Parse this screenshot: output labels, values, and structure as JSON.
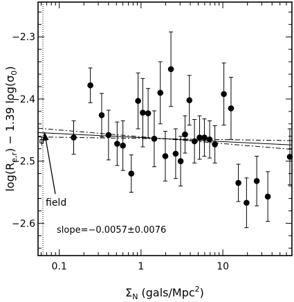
{
  "chart_data": {
    "type": "scatter",
    "xscale": "log",
    "xlim": [
      0.055,
      70
    ],
    "ylim": [
      -2.652,
      -2.244
    ],
    "xticks": [
      {
        "value": 0.1,
        "label": "0.1"
      },
      {
        "value": 1,
        "label": "1"
      },
      {
        "value": 10,
        "label": "10"
      }
    ],
    "yticks": [
      {
        "value": -2.3,
        "label": "−2.3"
      },
      {
        "value": -2.4,
        "label": "−2.4"
      },
      {
        "value": -2.5,
        "label": "−2.5"
      },
      {
        "value": -2.6,
        "label": "−2.6"
      }
    ],
    "xlabel": {
      "prefix": "Σ",
      "sub": "N",
      "middle": " (gals/Mpc",
      "sup": "2",
      "suffix": ")"
    },
    "ylabel": {
      "p1": "log(R",
      "s1": "e,r",
      "p2": ")  −  1.39  log(σ",
      "s2": "0",
      "p3": ")"
    },
    "annotation_slope": "slope=−0.0057±0.0076",
    "annotation_field": "field",
    "field": {
      "x": 0.061,
      "y": -2.468,
      "err": 0.007
    },
    "fit_lines": [
      {
        "style": "solid",
        "x": [
          0.055,
          70
        ],
        "y": [
          -2.454,
          -2.474
        ]
      },
      {
        "style": "dashdot",
        "x": [
          0.055,
          70
        ],
        "y": [
          -2.447,
          -2.481
        ]
      },
      {
        "style": "dashdot",
        "x": [
          0.055,
          70
        ],
        "y": [
          -2.461,
          -2.467
        ]
      }
    ],
    "points": [
      {
        "x": 0.15,
        "y": -2.462,
        "err": 0.027
      },
      {
        "x": 0.24,
        "y": -2.378,
        "err": 0.028
      },
      {
        "x": 0.33,
        "y": -2.426,
        "err": 0.035
      },
      {
        "x": 0.4,
        "y": -2.458,
        "err": 0.04
      },
      {
        "x": 0.51,
        "y": -2.472,
        "err": 0.035
      },
      {
        "x": 0.6,
        "y": -2.475,
        "err": 0.04
      },
      {
        "x": 0.76,
        "y": -2.52,
        "err": 0.03
      },
      {
        "x": 0.92,
        "y": -2.403,
        "err": 0.045
      },
      {
        "x": 1.05,
        "y": -2.422,
        "err": 0.055
      },
      {
        "x": 1.22,
        "y": -2.423,
        "err": 0.04
      },
      {
        "x": 1.45,
        "y": -2.464,
        "err": 0.045
      },
      {
        "x": 1.72,
        "y": -2.39,
        "err": 0.05
      },
      {
        "x": 1.98,
        "y": -2.492,
        "err": 0.04
      },
      {
        "x": 2.32,
        "y": -2.352,
        "err": 0.06
      },
      {
        "x": 2.65,
        "y": -2.488,
        "err": 0.04
      },
      {
        "x": 3.05,
        "y": -2.5,
        "err": 0.04
      },
      {
        "x": 3.45,
        "y": -2.457,
        "err": 0.03
      },
      {
        "x": 3.9,
        "y": -2.402,
        "err": 0.04
      },
      {
        "x": 4.5,
        "y": -2.468,
        "err": 0.035
      },
      {
        "x": 5.2,
        "y": -2.462,
        "err": 0.035
      },
      {
        "x": 5.95,
        "y": -2.462,
        "err": 0.03
      },
      {
        "x": 6.9,
        "y": -2.465,
        "err": 0.03
      },
      {
        "x": 8.0,
        "y": -2.473,
        "err": 0.03
      },
      {
        "x": 10.3,
        "y": -2.392,
        "err": 0.05
      },
      {
        "x": 12.6,
        "y": -2.415,
        "err": 0.05
      },
      {
        "x": 15.5,
        "y": -2.535,
        "err": 0.03
      },
      {
        "x": 19.5,
        "y": -2.567,
        "err": 0.04
      },
      {
        "x": 26.0,
        "y": -2.532,
        "err": 0.04
      },
      {
        "x": 35.5,
        "y": -2.557,
        "err": 0.04
      },
      {
        "x": 66.0,
        "y": -2.493,
        "err": 0.045
      }
    ]
  }
}
